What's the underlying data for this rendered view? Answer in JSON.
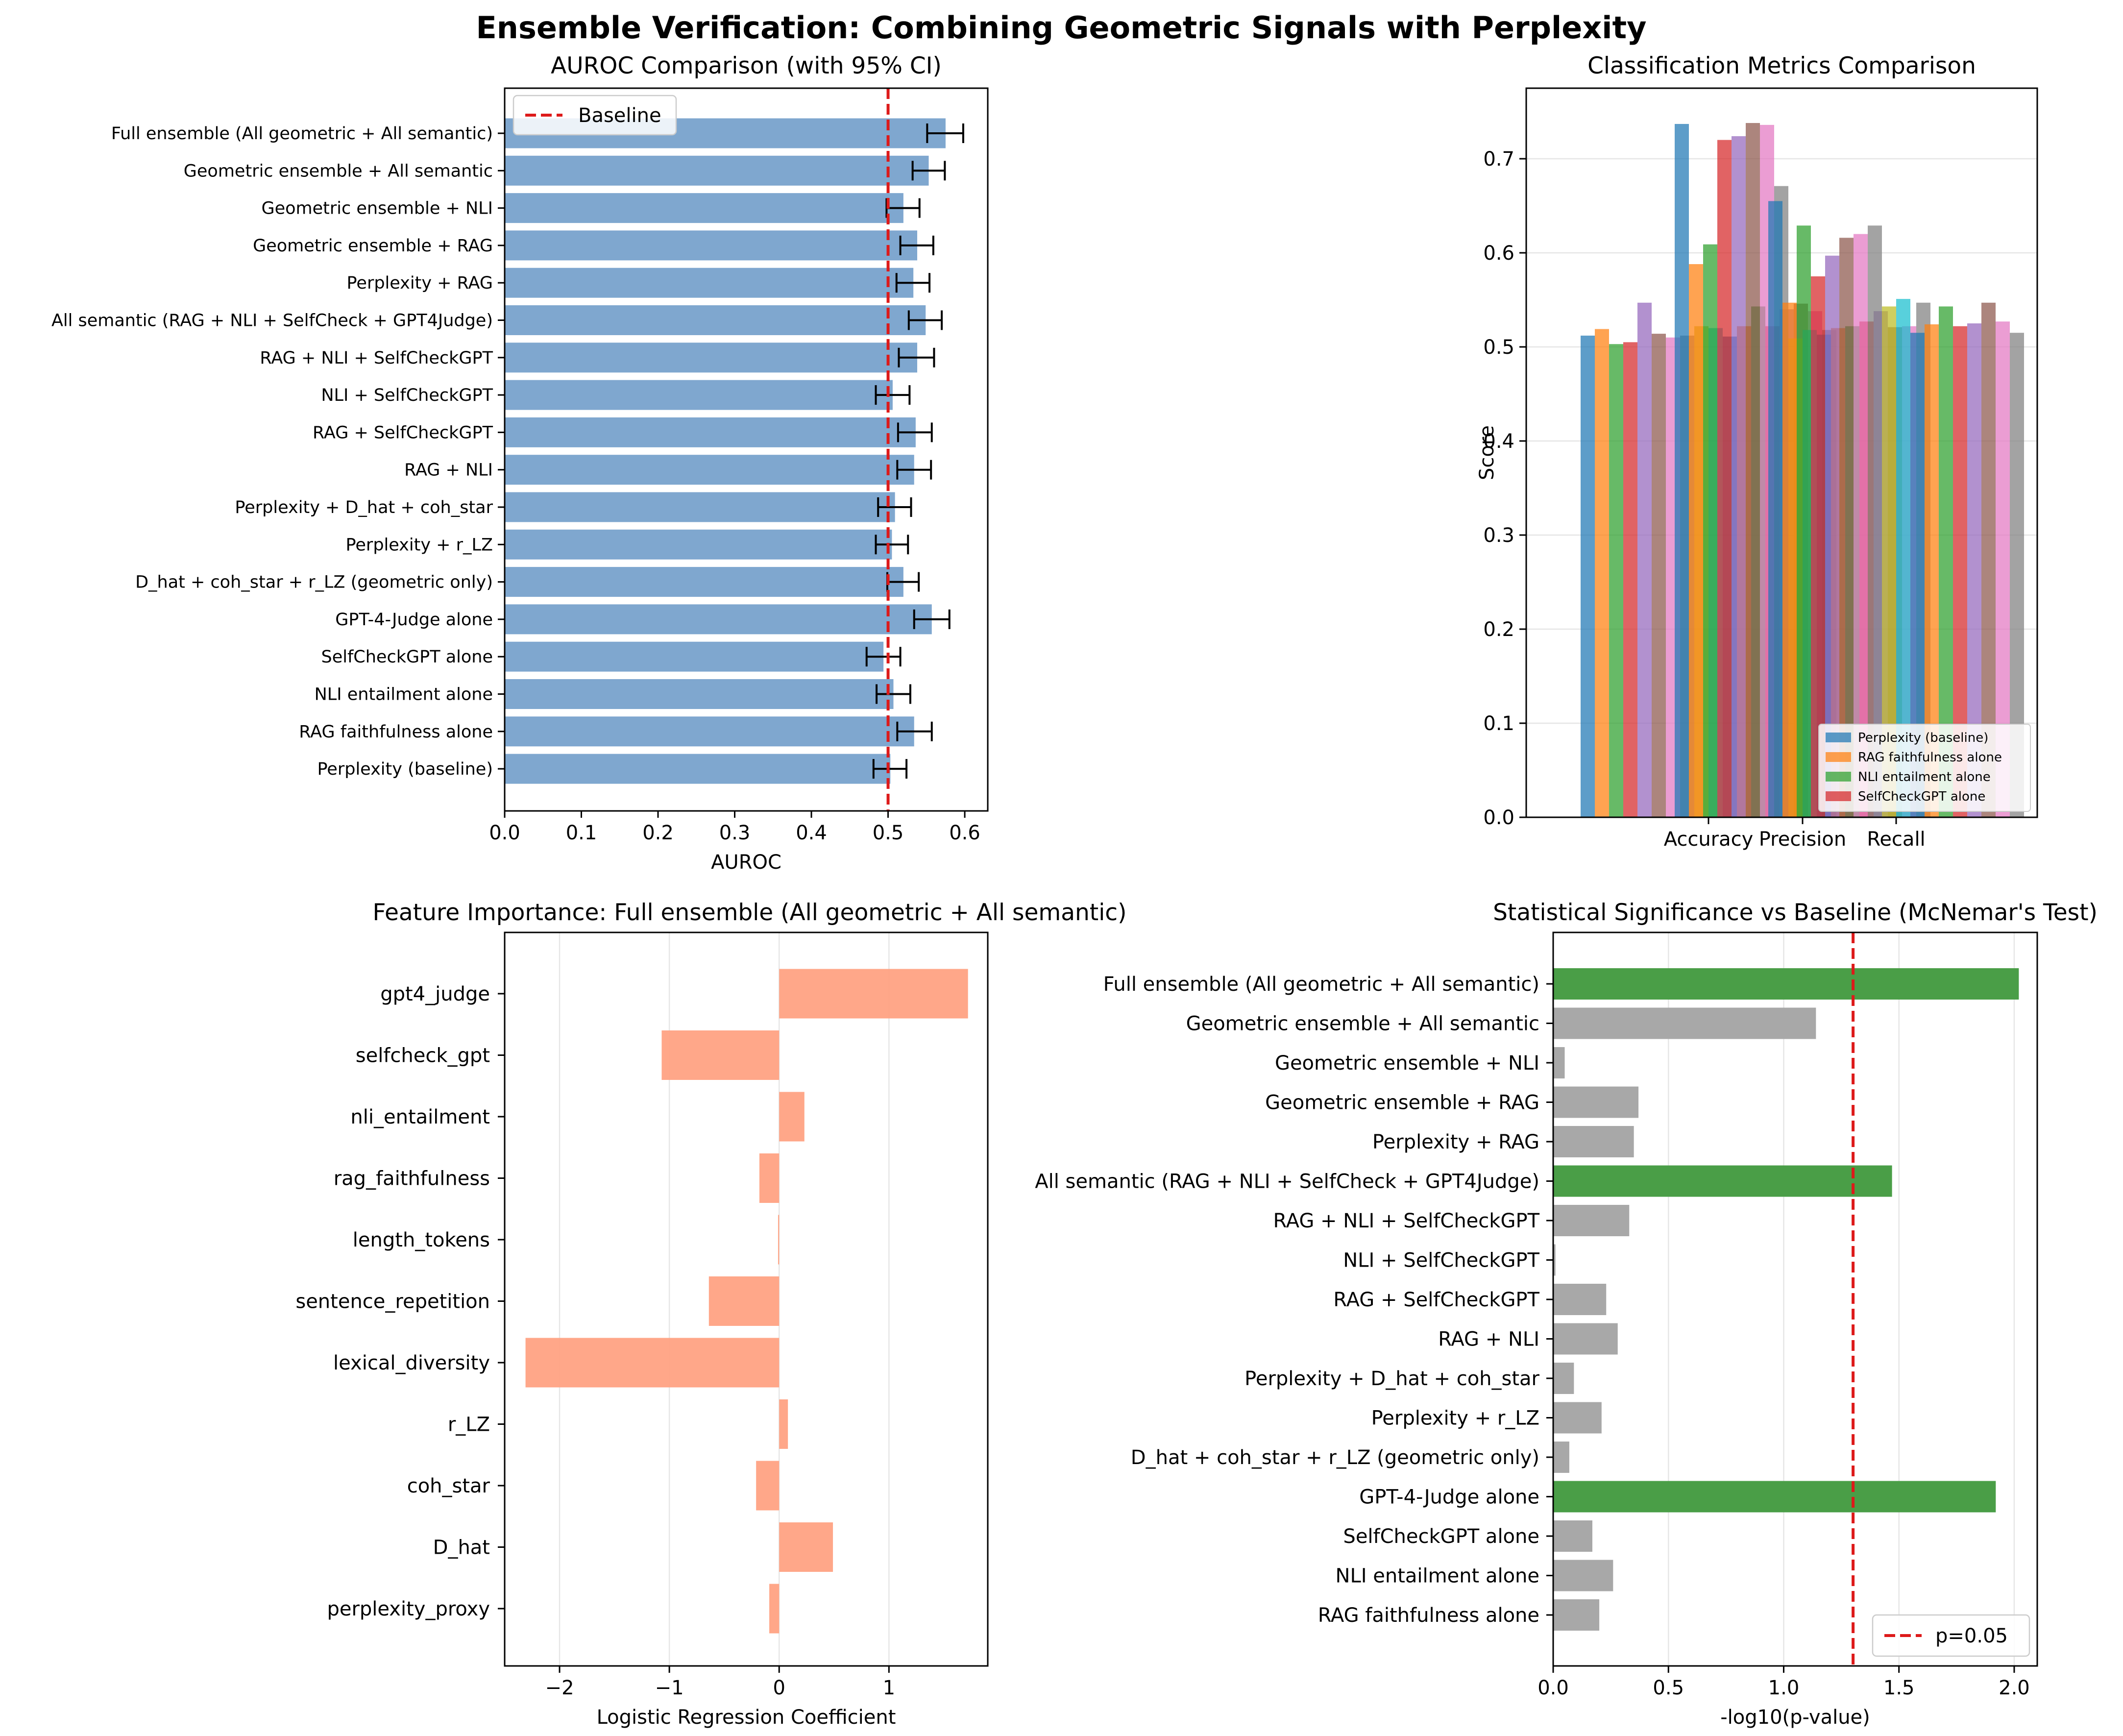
{
  "figure": {
    "title": "Ensemble Verification: Combining Geometric Signals with Perplexity"
  },
  "chart_data": [
    {
      "id": "auroc",
      "type": "bar",
      "orientation": "horizontal",
      "title": "AUROC Comparison (with 95% CI)",
      "xlabel": "AUROC",
      "xlim": [
        0,
        0.63
      ],
      "xticks": [
        "0.0",
        "0.1",
        "0.2",
        "0.3",
        "0.4",
        "0.5",
        "0.6"
      ],
      "grid": false,
      "color": "#7fa7cf",
      "baseline": {
        "value": 0.5,
        "label": "Baseline",
        "color": "#dd1a1a"
      },
      "legend_position": "upper-left",
      "categories": [
        "Full ensemble (All geometric + All semantic)",
        "Geometric ensemble + All semantic",
        "Geometric ensemble + NLI",
        "Geometric ensemble + RAG",
        "Perplexity + RAG",
        "All semantic (RAG + NLI + SelfCheck + GPT4Judge)",
        "RAG + NLI + SelfCheckGPT",
        "NLI + SelfCheckGPT",
        "RAG + SelfCheckGPT",
        "RAG + NLI",
        "Perplexity + D_hat + coh_star",
        "Perplexity + r_LZ",
        "D_hat + coh_star + r_LZ (geometric only)",
        "GPT-4-Judge alone",
        "SelfCheckGPT alone",
        "NLI entailment alone",
        "RAG faithfulness alone",
        "Perplexity (baseline)"
      ],
      "values": [
        0.575,
        0.553,
        0.52,
        0.538,
        0.533,
        0.549,
        0.538,
        0.506,
        0.536,
        0.534,
        0.509,
        0.505,
        0.52,
        0.557,
        0.494,
        0.507,
        0.534,
        0.503
      ],
      "ci_low": [
        0.551,
        0.532,
        0.498,
        0.516,
        0.511,
        0.527,
        0.514,
        0.484,
        0.513,
        0.512,
        0.487,
        0.484,
        0.499,
        0.534,
        0.472,
        0.485,
        0.512,
        0.481
      ],
      "ci_high": [
        0.598,
        0.574,
        0.541,
        0.559,
        0.554,
        0.57,
        0.56,
        0.528,
        0.557,
        0.556,
        0.53,
        0.526,
        0.54,
        0.58,
        0.516,
        0.529,
        0.557,
        0.524
      ]
    },
    {
      "id": "metrics",
      "type": "bar",
      "orientation": "vertical",
      "title": "Classification Metrics Comparison",
      "ylabel": "Score",
      "xlabel": "",
      "ylim": [
        0,
        0.775
      ],
      "yticks": [
        "0.0",
        "0.1",
        "0.2",
        "0.3",
        "0.4",
        "0.5",
        "0.6",
        "0.7"
      ],
      "grid": true,
      "categories": [
        "Accuracy",
        "Precision",
        "Recall"
      ],
      "legend_position": "lower-right",
      "series": [
        {
          "name": "Perplexity (baseline)",
          "color": "#1f77b4",
          "values": [
            0.512,
            0.737,
            0.655
          ]
        },
        {
          "name": "RAG faithfulness alone",
          "color": "#ff7f0e",
          "values": [
            0.519,
            0.588,
            0.547
          ]
        },
        {
          "name": "NLI entailment alone",
          "color": "#2ca02c",
          "values": [
            0.503,
            0.609,
            0.629
          ]
        },
        {
          "name": "SelfCheckGPT alone",
          "color": "#d62728",
          "values": [
            0.505,
            0.72,
            0.575
          ]
        },
        {
          "name": "",
          "color": "#9467bd",
          "values": [
            0.547,
            0.724,
            0.597
          ]
        },
        {
          "name": "",
          "color": "#8c564b",
          "values": [
            0.514,
            0.738,
            0.616
          ]
        },
        {
          "name": "",
          "color": "#e377c2",
          "values": [
            0.51,
            0.736,
            0.62
          ]
        },
        {
          "name": "",
          "color": "#7f7f7f",
          "values": [
            0.512,
            0.671,
            0.629
          ]
        },
        {
          "name": "",
          "color": "#bcbd22",
          "values": [
            0.522,
            0.509,
            0.543
          ]
        },
        {
          "name": "",
          "color": "#17becf",
          "values": [
            0.52,
            0.518,
            0.551
          ]
        },
        {
          "name": "",
          "color": "#1f77b4",
          "values": [
            0.511,
            0.513,
            0.515
          ]
        },
        {
          "name": "",
          "color": "#ff7f0e",
          "values": [
            0.522,
            0.52,
            0.524
          ]
        },
        {
          "name": "",
          "color": "#2ca02c",
          "values": [
            0.543,
            0.522,
            0.543
          ]
        },
        {
          "name": "",
          "color": "#d62728",
          "values": [
            0.522,
            0.527,
            0.522
          ]
        },
        {
          "name": "",
          "color": "#9467bd",
          "values": [
            0.54,
            0.538,
            0.525
          ]
        },
        {
          "name": "",
          "color": "#8c564b",
          "values": [
            0.546,
            0.521,
            0.547
          ]
        },
        {
          "name": "",
          "color": "#e377c2",
          "values": [
            0.538,
            0.522,
            0.527
          ]
        },
        {
          "name": "",
          "color": "#7f7f7f",
          "values": [
            0.518,
            0.547,
            0.515
          ]
        }
      ]
    },
    {
      "id": "features",
      "type": "bar",
      "orientation": "horizontal",
      "title": "Feature Importance: Full ensemble (All geometric + All semantic)",
      "xlabel": "Logistic Regression Coefficient",
      "xlim": [
        -2.5,
        1.9
      ],
      "xticks": [
        "−2",
        "−1",
        "0",
        "1"
      ],
      "grid": true,
      "color": "#ffa283",
      "categories": [
        "gpt4_judge",
        "selfcheck_gpt",
        "nli_entailment",
        "rag_faithfulness",
        "length_tokens",
        "sentence_repetition",
        "lexical_diversity",
        "r_LZ",
        "coh_star",
        "D_hat",
        "perplexity_proxy"
      ],
      "values": [
        1.72,
        -1.07,
        0.23,
        -0.18,
        -0.01,
        -0.64,
        -2.31,
        0.08,
        -0.21,
        0.49,
        -0.09
      ]
    },
    {
      "id": "significance",
      "type": "bar",
      "orientation": "horizontal",
      "title": "Statistical Significance vs Baseline (McNemar's Test)",
      "xlabel": "-log10(p-value)",
      "xlim": [
        0,
        2.1
      ],
      "xticks": [
        "0.0",
        "0.5",
        "1.0",
        "1.5",
        "2.0"
      ],
      "grid": true,
      "threshold": {
        "value": 1.301,
        "label": "p=0.05",
        "color": "#dd1a1a"
      },
      "legend_position": "lower-right",
      "significant_color": "#4a9e47",
      "nonsignificant_color": "#a8a8a8",
      "categories": [
        "Full ensemble (All geometric + All semantic)",
        "Geometric ensemble + All semantic",
        "Geometric ensemble + NLI",
        "Geometric ensemble + RAG",
        "Perplexity + RAG",
        "All semantic (RAG + NLI + SelfCheck + GPT4Judge)",
        "RAG + NLI + SelfCheckGPT",
        "NLI + SelfCheckGPT",
        "RAG + SelfCheckGPT",
        "RAG + NLI",
        "Perplexity + D_hat + coh_star",
        "Perplexity + r_LZ",
        "D_hat + coh_star + r_LZ (geometric only)",
        "GPT-4-Judge alone",
        "SelfCheckGPT alone",
        "NLI entailment alone",
        "RAG faithfulness alone"
      ],
      "values": [
        2.02,
        1.14,
        0.05,
        0.37,
        0.35,
        1.47,
        0.33,
        0.01,
        0.23,
        0.28,
        0.09,
        0.21,
        0.07,
        1.92,
        0.17,
        0.26,
        0.2
      ],
      "significant": [
        true,
        false,
        false,
        false,
        false,
        true,
        false,
        false,
        false,
        false,
        false,
        false,
        false,
        true,
        false,
        false,
        false
      ]
    }
  ]
}
